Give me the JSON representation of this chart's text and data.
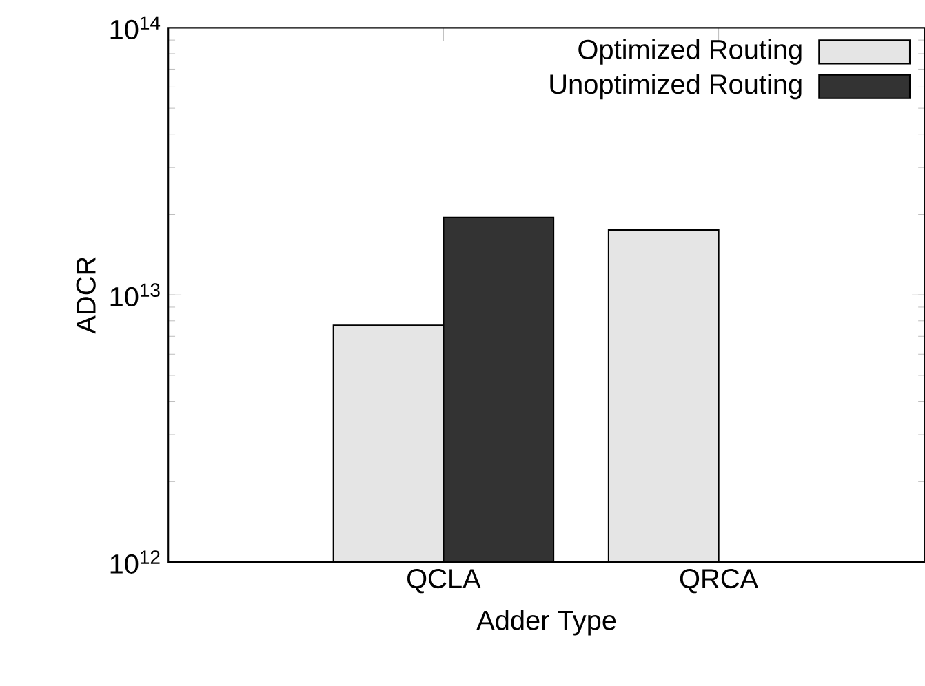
{
  "chart_data": {
    "type": "bar",
    "xlabel": "Adder Type",
    "ylabel": "ADCR",
    "categories": [
      "QCLA",
      "QRCA"
    ],
    "series": [
      {
        "name": "Optimized Routing",
        "color": "#e5e5e5",
        "values": [
          7700000000000.0,
          17500000000000.0
        ]
      },
      {
        "name": "Unoptimized Routing",
        "color": "#333333",
        "values": [
          19500000000000.0,
          null
        ]
      }
    ],
    "log": "y",
    "ylim": [
      1000000000000.0,
      100000000000000.0
    ],
    "yticks": [
      {
        "value": 1000000000000.0,
        "label": "10$^{12}$"
      },
      {
        "value": 10000000000000.0,
        "label": "10$^{13}$"
      },
      {
        "value": 100000000000000.0,
        "label": "10$^{14}$"
      }
    ],
    "legend": "top right",
    "grid": false
  }
}
